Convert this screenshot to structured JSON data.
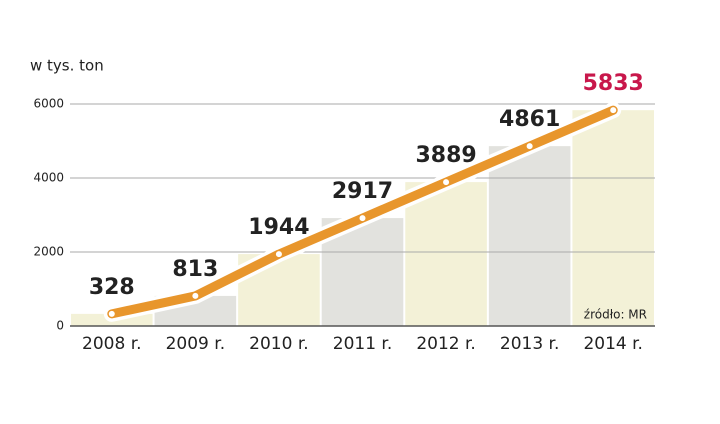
{
  "chart_data": {
    "type": "line",
    "ylabel": "w tys. ton",
    "source": "źródło: MR",
    "categories": [
      "2008 r.",
      "2009 r.",
      "2010 r.",
      "2011 r.",
      "2012 r.",
      "2013 r.",
      "2014 r."
    ],
    "values": [
      328,
      813,
      1944,
      2917,
      3889,
      4861,
      5833
    ],
    "color": "#e8962c",
    "column_colors": [
      "#f3f1d7",
      "#e2e2de"
    ],
    "last_label_color": "#c8174b",
    "ylim": [
      0,
      6000
    ],
    "yticks": [
      0,
      2000,
      4000,
      6000
    ],
    "grid": true
  }
}
